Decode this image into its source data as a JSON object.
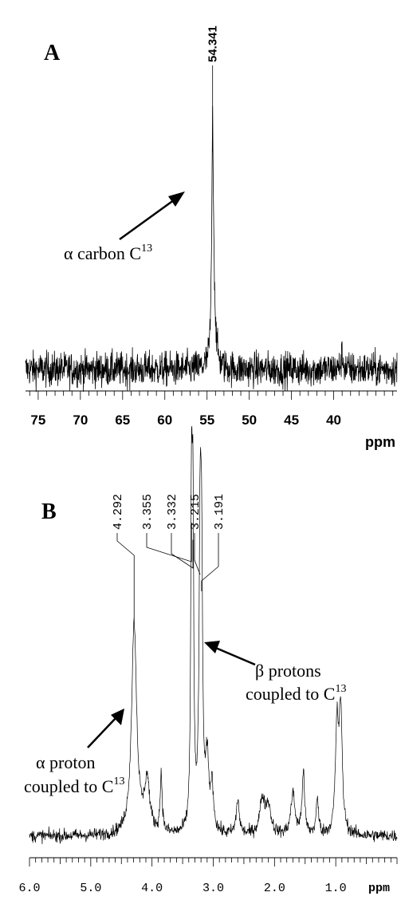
{
  "chart_data": [
    {
      "type": "line",
      "panel_label": "A",
      "xlabel": "ppm",
      "xlim": [
        76.5,
        32.5
      ],
      "x_reversed": true,
      "ticks_major": [
        75,
        70,
        65,
        60,
        55,
        50,
        45,
        40
      ],
      "tick_labels": [
        "75",
        "70",
        "65",
        "60",
        "55",
        "50",
        "45",
        "40"
      ],
      "minor_tick_step": 1,
      "peaks": [
        {
          "x": 54.341,
          "height": 0.92,
          "width": 0.12,
          "label": "54.341"
        },
        {
          "x": 54.2,
          "height": 0.22,
          "width": 0.25,
          "label": ""
        },
        {
          "x": 39.0,
          "height": 0.06,
          "width": 0.15,
          "label": ""
        }
      ],
      "noise_level": 0.08,
      "annotations": [
        {
          "text": "α carbon C",
          "superscript": "13",
          "arrow_to_ppm": 54.6
        }
      ]
    },
    {
      "type": "line",
      "panel_label": "B",
      "xlabel": "ppm",
      "xlim": [
        6.0,
        0.0
      ],
      "x_reversed": true,
      "ticks_major": [
        6.0,
        5.0,
        4.0,
        3.0,
        2.0,
        1.0
      ],
      "tick_labels": [
        "6.0",
        "5.0",
        "4.0",
        "3.0",
        "2.0",
        "1.0"
      ],
      "minor_tick_step": 0.1,
      "peaks": [
        {
          "x": 4.292,
          "height": 0.62,
          "width": 0.05,
          "label": "4.292"
        },
        {
          "x": 4.08,
          "height": 0.15,
          "width": 0.05,
          "label": ""
        },
        {
          "x": 3.85,
          "height": 0.17,
          "width": 0.02,
          "label": ""
        },
        {
          "x": 3.355,
          "height": 0.9,
          "width": 0.015,
          "label": "3.355"
        },
        {
          "x": 3.332,
          "height": 0.85,
          "width": 0.015,
          "label": "3.332"
        },
        {
          "x": 3.215,
          "height": 0.75,
          "width": 0.02,
          "label": "3.215"
        },
        {
          "x": 3.191,
          "height": 0.7,
          "width": 0.02,
          "label": "3.191"
        },
        {
          "x": 3.1,
          "height": 0.2,
          "width": 0.03,
          "label": ""
        },
        {
          "x": 3.02,
          "height": 0.13,
          "width": 0.03,
          "label": ""
        },
        {
          "x": 2.6,
          "height": 0.1,
          "width": 0.03,
          "label": ""
        },
        {
          "x": 2.2,
          "height": 0.1,
          "width": 0.05,
          "label": ""
        },
        {
          "x": 2.1,
          "height": 0.08,
          "width": 0.05,
          "label": ""
        },
        {
          "x": 1.7,
          "height": 0.12,
          "width": 0.04,
          "label": ""
        },
        {
          "x": 1.53,
          "height": 0.18,
          "width": 0.025,
          "label": ""
        },
        {
          "x": 1.3,
          "height": 0.1,
          "width": 0.025,
          "label": ""
        },
        {
          "x": 0.98,
          "height": 0.3,
          "width": 0.03,
          "label": ""
        },
        {
          "x": 0.92,
          "height": 0.35,
          "width": 0.03,
          "label": ""
        }
      ],
      "noise_level": 0.02,
      "annotations": [
        {
          "text": "β protons",
          "line2": "coupled to C",
          "superscript": "13",
          "arrow_to_ppm": 3.15
        },
        {
          "text": "α proton",
          "line2": "coupled to C",
          "superscript": "13",
          "arrow_to_ppm": 4.35
        }
      ]
    }
  ]
}
